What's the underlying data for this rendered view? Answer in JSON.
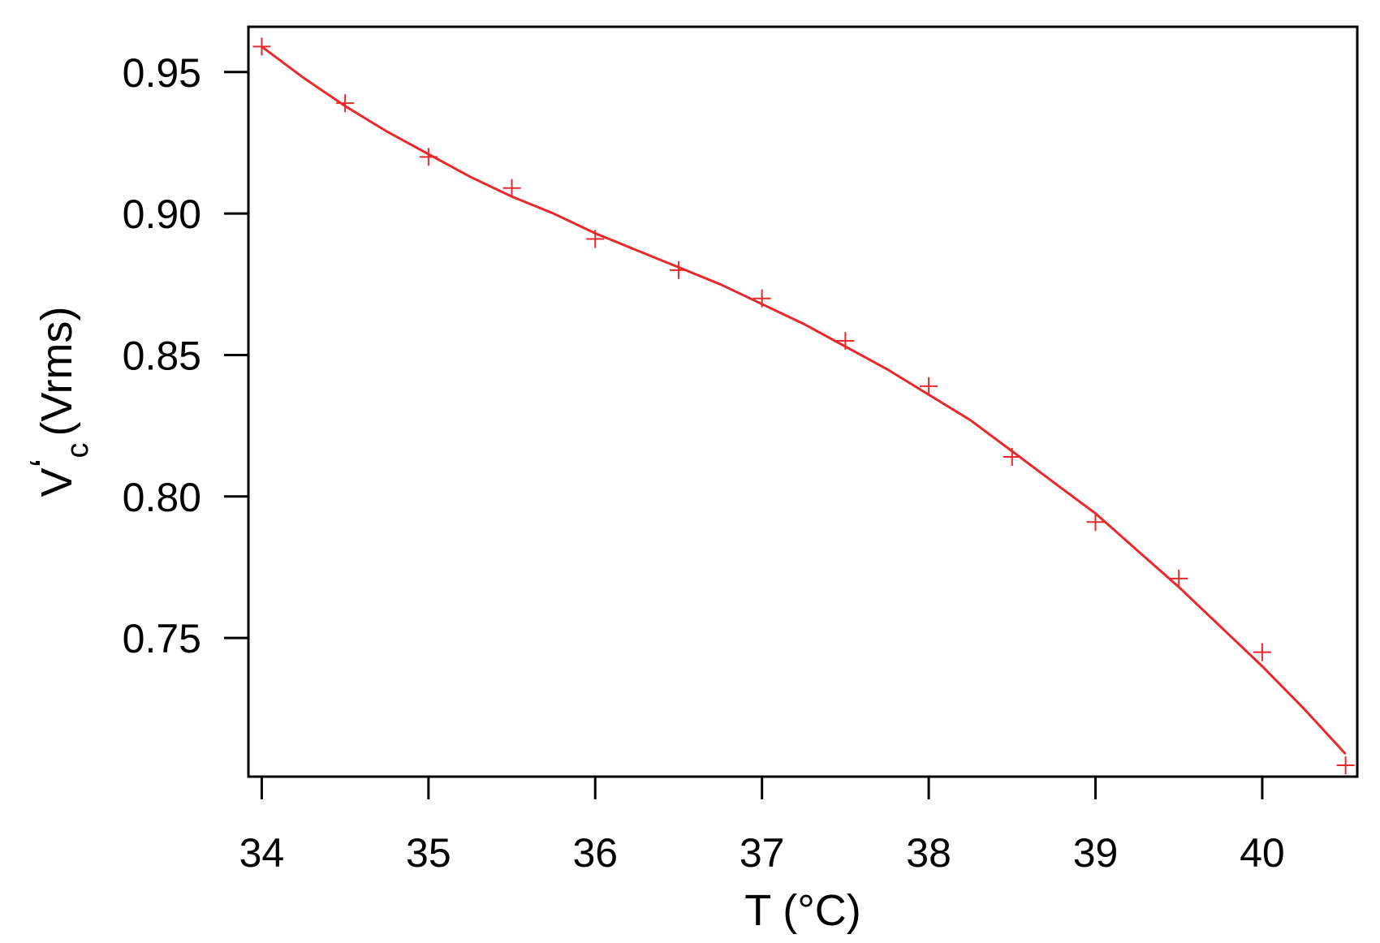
{
  "chart_data": {
    "type": "scatter",
    "title": "",
    "xlabel": "T (°C)",
    "ylabel": {
      "main": "V",
      "prime": "‘",
      "subscript": "c",
      "unit": "(Vrms)"
    },
    "xlim": [
      33.92,
      40.57
    ],
    "ylim": [
      0.701,
      0.966
    ],
    "xticks": [
      34,
      35,
      36,
      37,
      38,
      39,
      40
    ],
    "xtick_labels": [
      "34",
      "35",
      "36",
      "37",
      "38",
      "39",
      "40"
    ],
    "yticks": [
      0.75,
      0.8,
      0.85,
      0.9,
      0.95
    ],
    "ytick_labels": [
      "0.75",
      "0.80",
      "0.85",
      "0.90",
      "0.95"
    ],
    "grid": false,
    "colors": {
      "series": "#e8282b",
      "axis": "#000000"
    },
    "series": [
      {
        "kind": "markers",
        "marker": "plus",
        "x": [
          34.0,
          34.5,
          35.0,
          35.5,
          36.0,
          36.5,
          37.0,
          37.5,
          38.0,
          38.5,
          39.0,
          39.5,
          40.0,
          40.5
        ],
        "y": [
          0.959,
          0.939,
          0.92,
          0.909,
          0.891,
          0.88,
          0.87,
          0.855,
          0.839,
          0.814,
          0.791,
          0.771,
          0.745,
          0.705
        ]
      },
      {
        "kind": "fit-line",
        "x": [
          34.0,
          34.25,
          34.5,
          34.75,
          35.0,
          35.25,
          35.5,
          35.75,
          36.0,
          36.25,
          36.5,
          36.75,
          37.0,
          37.25,
          37.5,
          37.75,
          38.0,
          38.25,
          38.5,
          38.75,
          39.0,
          39.25,
          39.5,
          39.75,
          40.0,
          40.25,
          40.5
        ],
        "y": [
          0.959,
          0.948,
          0.938,
          0.929,
          0.921,
          0.913,
          0.906,
          0.9,
          0.893,
          0.887,
          0.881,
          0.875,
          0.868,
          0.861,
          0.853,
          0.845,
          0.836,
          0.827,
          0.816,
          0.805,
          0.794,
          0.781,
          0.768,
          0.754,
          0.74,
          0.725,
          0.709
        ]
      }
    ]
  }
}
